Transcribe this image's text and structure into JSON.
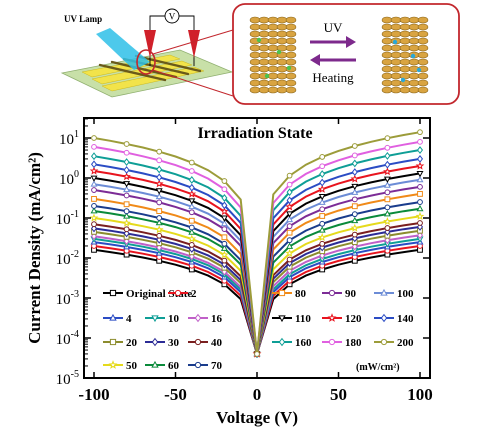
{
  "schematic": {
    "lamp_label": "UV Lamp",
    "meter_label": "V",
    "forward_label": "UV",
    "reverse_label": "Heating"
  },
  "chart_data": {
    "type": "line",
    "title": "Irradiation State",
    "xlabel": "Voltage (V)",
    "ylabel": "Current Density (mA/cm²)",
    "xlim": [
      -100,
      100
    ],
    "ylim_log10": [
      -5,
      1.5
    ],
    "yscale": "log",
    "x_ticks": [
      -100,
      -50,
      0,
      50,
      100
    ],
    "y_ticks": [
      {
        "exp": -5,
        "label_base": "10",
        "label_exp": "-5"
      },
      {
        "exp": -4,
        "label_base": "10",
        "label_exp": "-4"
      },
      {
        "exp": -3,
        "label_base": "10",
        "label_exp": "-3"
      },
      {
        "exp": -2,
        "label_base": "10",
        "label_exp": "-2"
      },
      {
        "exp": -1,
        "label_base": "10",
        "label_exp": "-1"
      },
      {
        "exp": 0,
        "label_base": "10",
        "label_exp": "0"
      },
      {
        "exp": 1,
        "label_base": "10",
        "label_exp": "1"
      }
    ],
    "x_points": [
      -100,
      -90,
      -80,
      -70,
      -60,
      -50,
      -40,
      -30,
      -20,
      -10,
      0,
      10,
      20,
      30,
      40,
      50,
      60,
      70,
      80,
      90,
      100
    ],
    "legend_unit": "(mW/cm²)",
    "legend_placement": "lower",
    "series": [
      {
        "name": "Original State",
        "color": "#000000",
        "marker": "square",
        "y_neg100": 0.016,
        "y_pos100": 0.016
      },
      {
        "name": "2",
        "color": "#e8141e",
        "marker": "circle",
        "y_neg100": 0.02,
        "y_pos100": 0.02
      },
      {
        "name": "4",
        "color": "#2b4cc4",
        "marker": "triangle",
        "y_neg100": 0.025,
        "y_pos100": 0.025
      },
      {
        "name": "10",
        "color": "#0e9e96",
        "marker": "triangle-down",
        "y_neg100": 0.03,
        "y_pos100": 0.03
      },
      {
        "name": "16",
        "color": "#c060c8",
        "marker": "diamond",
        "y_neg100": 0.035,
        "y_pos100": 0.037
      },
      {
        "name": "20",
        "color": "#8c8c2e",
        "marker": "square",
        "y_neg100": 0.045,
        "y_pos100": 0.048
      },
      {
        "name": "30",
        "color": "#2c2c96",
        "marker": "diamond",
        "y_neg100": 0.055,
        "y_pos100": 0.06
      },
      {
        "name": "40",
        "color": "#7a1f1f",
        "marker": "circle",
        "y_neg100": 0.07,
        "y_pos100": 0.075
      },
      {
        "name": "50",
        "color": "#e5da1c",
        "marker": "star",
        "y_neg100": 0.1,
        "y_pos100": 0.11
      },
      {
        "name": "60",
        "color": "#0a8a3a",
        "marker": "triangle",
        "y_neg100": 0.15,
        "y_pos100": 0.17
      },
      {
        "name": "70",
        "color": "#1a3c8c",
        "marker": "circle",
        "y_neg100": 0.2,
        "y_pos100": 0.25
      },
      {
        "name": "80",
        "color": "#f08a18",
        "marker": "square",
        "y_neg100": 0.3,
        "y_pos100": 0.4
      },
      {
        "name": "90",
        "color": "#7c2c96",
        "marker": "circle",
        "y_neg100": 0.5,
        "y_pos100": 0.6
      },
      {
        "name": "100",
        "color": "#6c8cd6",
        "marker": "triangle",
        "y_neg100": 0.7,
        "y_pos100": 0.9
      },
      {
        "name": "110",
        "color": "#000000",
        "marker": "triangle-down",
        "y_neg100": 1.0,
        "y_pos100": 1.3
      },
      {
        "name": "120",
        "color": "#e8141e",
        "marker": "star",
        "y_neg100": 1.5,
        "y_pos100": 2.0
      },
      {
        "name": "140",
        "color": "#2b4cc4",
        "marker": "diamond",
        "y_neg100": 2.2,
        "y_pos100": 3.0
      },
      {
        "name": "160",
        "color": "#0e9e96",
        "marker": "diamond",
        "y_neg100": 3.5,
        "y_pos100": 5.0
      },
      {
        "name": "180",
        "color": "#e060e0",
        "marker": "circle",
        "y_neg100": 6.0,
        "y_pos100": 8.0
      },
      {
        "name": "200",
        "color": "#9c9c3a",
        "marker": "circle",
        "y_neg100": 10.0,
        "y_pos100": 14.0
      }
    ]
  }
}
